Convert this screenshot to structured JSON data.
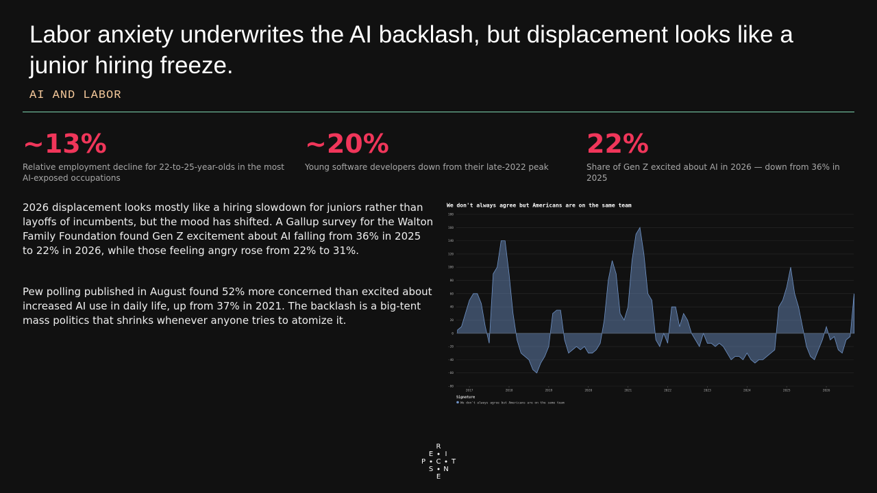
{
  "header": {
    "title": "Labor anxiety underwrites the AI backlash, but displacement looks like a junior hiring freeze.",
    "kicker": "AI AND LABOR"
  },
  "stats": [
    {
      "figure": "~13%",
      "text": "Relative employment decline for 22-to-25-year-olds in the most AI-exposed occupations"
    },
    {
      "figure": "~20%",
      "text": "Young software developers down from their late-2022 peak"
    },
    {
      "figure": "22%",
      "text": "Share of Gen Z excited about AI in 2026 — down from 36% in 2025"
    }
  ],
  "paragraphs": [
    "2026 displacement looks mostly like a hiring slowdown for juniors rather than layoffs of incumbents, but the mood has shifted. A Gallup survey for the Walton Family Foundation found Gen Z excitement about AI falling from 36% in 2025 to 22% in 2026, while those feeling angry rose from 22% to 31%.",
    "Pew polling published in August found 52% more concerned than excited about increased AI use in daily life, up from 37% in 2021. The backlash is a big-tent mass politics that shrinks whenever anyone tries to atomize it."
  ],
  "logo": {
    "letters": [
      "R",
      "E",
      "I",
      "P",
      "C",
      "T",
      "S",
      "N",
      "E"
    ]
  },
  "chart_data": {
    "type": "area",
    "title": "We don't always agree but Americans are on the same team",
    "legend_title": "Signature",
    "x": [
      2016.7,
      2016.8,
      2016.9,
      2017.0,
      2017.1,
      2017.2,
      2017.3,
      2017.4,
      2017.5,
      2017.6,
      2017.7,
      2017.8,
      2017.9,
      2018.0,
      2018.1,
      2018.2,
      2018.3,
      2018.4,
      2018.5,
      2018.6,
      2018.7,
      2018.8,
      2018.9,
      2019.0,
      2019.1,
      2019.2,
      2019.3,
      2019.4,
      2019.5,
      2019.6,
      2019.7,
      2019.8,
      2019.9,
      2020.0,
      2020.1,
      2020.2,
      2020.3,
      2020.4,
      2020.5,
      2020.6,
      2020.7,
      2020.8,
      2020.9,
      2021.0,
      2021.1,
      2021.2,
      2021.3,
      2021.4,
      2021.5,
      2021.6,
      2021.7,
      2021.8,
      2021.9,
      2022.0,
      2022.1,
      2022.2,
      2022.3,
      2022.4,
      2022.5,
      2022.6,
      2022.7,
      2022.8,
      2022.9,
      2023.0,
      2023.1,
      2023.2,
      2023.3,
      2023.4,
      2023.5,
      2023.6,
      2023.7,
      2023.8,
      2023.9,
      2024.0,
      2024.1,
      2024.2,
      2024.3,
      2024.4,
      2024.5,
      2024.6,
      2024.7,
      2024.8,
      2024.9,
      2025.0,
      2025.1,
      2025.2,
      2025.3,
      2025.4,
      2025.5,
      2025.6,
      2025.7,
      2025.8,
      2025.9,
      2026.0,
      2026.1,
      2026.2,
      2026.3,
      2026.4,
      2026.5,
      2026.6,
      2026.7
    ],
    "series": [
      {
        "name": "We don't always agree but Americans are on the same team",
        "color": "#6f93c7",
        "values": [
          5,
          10,
          30,
          50,
          60,
          60,
          45,
          10,
          -15,
          90,
          100,
          140,
          140,
          90,
          30,
          -10,
          -30,
          -35,
          -40,
          -55,
          -60,
          -45,
          -35,
          -20,
          30,
          35,
          35,
          -10,
          -30,
          -25,
          -20,
          -25,
          -20,
          -30,
          -30,
          -25,
          -15,
          20,
          80,
          110,
          90,
          30,
          20,
          40,
          110,
          150,
          160,
          120,
          60,
          50,
          -10,
          -20,
          0,
          -15,
          40,
          40,
          10,
          30,
          20,
          0,
          -10,
          -20,
          0,
          -15,
          -15,
          -20,
          -15,
          -20,
          -30,
          -40,
          -35,
          -35,
          -40,
          -30,
          -40,
          -45,
          -40,
          -40,
          -35,
          -30,
          -25,
          40,
          50,
          70,
          100,
          60,
          40,
          10,
          -20,
          -35,
          -40,
          -25,
          -10,
          10,
          -10,
          -5,
          -25,
          -30,
          -10,
          -5,
          60
        ]
      }
    ],
    "xlim": [
      2016.67,
      2026.69
    ],
    "xticks": [
      2017,
      2018,
      2019,
      2020,
      2021,
      2022,
      2023,
      2024,
      2025,
      2026
    ],
    "ylim": [
      -80,
      180
    ],
    "yticks": [
      -80,
      -60,
      -40,
      -20,
      0,
      20,
      40,
      60,
      80,
      100,
      120,
      140,
      160,
      180
    ],
    "grid": true
  }
}
